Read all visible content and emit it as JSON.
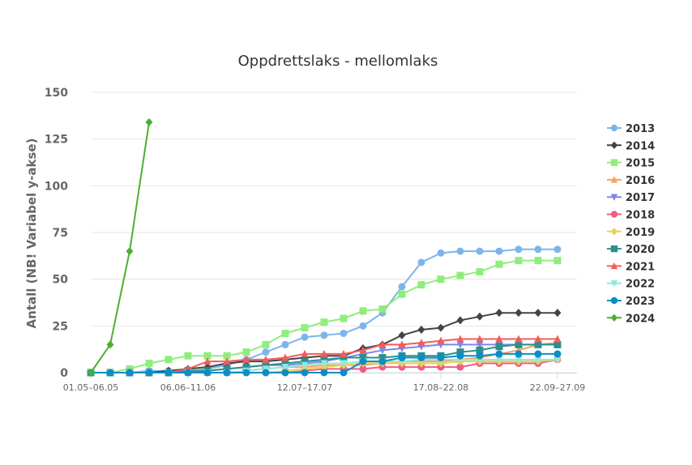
{
  "chart_data": {
    "type": "line",
    "title": "Oppdrettslaks - mellomlaks",
    "ylabel": "Antall (NB! Variabel y-akse)",
    "xlabel": "",
    "ylim": [
      0,
      150
    ],
    "yticks": [
      0,
      25,
      50,
      75,
      100,
      125,
      150
    ],
    "grid": true,
    "legend_position": "right",
    "x_count": 26,
    "x_tick_labels": [
      {
        "index": 0,
        "label": "01.05–06.05"
      },
      {
        "index": 5,
        "label": "06.06–11.06"
      },
      {
        "index": 11,
        "label": "12.07–17.07"
      },
      {
        "index": 18,
        "label": "17.08–22.08"
      },
      {
        "index": 24,
        "label": "22.09–27.09"
      }
    ],
    "series": [
      {
        "name": "2013",
        "color": "#7cb5ec",
        "marker": "circle",
        "values": [
          0,
          0,
          0,
          1,
          1,
          1,
          2,
          4,
          7,
          11,
          15,
          19,
          20,
          21,
          25,
          32,
          46,
          59,
          64,
          65,
          65,
          65,
          66,
          66,
          66
        ]
      },
      {
        "name": "2014",
        "color": "#434348",
        "marker": "diamond",
        "values": [
          0,
          0,
          0,
          0,
          1,
          2,
          3,
          5,
          6,
          6,
          7,
          8,
          9,
          9,
          13,
          15,
          20,
          23,
          24,
          28,
          30,
          32,
          32,
          32,
          32
        ]
      },
      {
        "name": "2015",
        "color": "#90ed7d",
        "marker": "square",
        "values": [
          0,
          0,
          2,
          5,
          7,
          9,
          9,
          9,
          11,
          15,
          21,
          24,
          27,
          29,
          33,
          34,
          42,
          47,
          50,
          52,
          54,
          58,
          60,
          60,
          60
        ]
      },
      {
        "name": "2016",
        "color": "#f7a35c",
        "marker": "triangle",
        "values": [
          0,
          0,
          0,
          0,
          0,
          0,
          0,
          0,
          1,
          2,
          3,
          3,
          4,
          4,
          4,
          5,
          6,
          6,
          6,
          7,
          8,
          10,
          12,
          15,
          16
        ]
      },
      {
        "name": "2017",
        "color": "#8085e9",
        "marker": "triangle-down",
        "values": [
          0,
          0,
          0,
          0,
          0,
          0,
          1,
          2,
          3,
          4,
          4,
          5,
          6,
          8,
          10,
          12,
          13,
          14,
          15,
          15,
          15,
          15,
          15,
          15,
          15
        ]
      },
      {
        "name": "2018",
        "color": "#f15c80",
        "marker": "circle",
        "values": [
          0,
          0,
          0,
          0,
          0,
          0,
          0,
          0,
          0,
          0,
          0,
          1,
          2,
          2,
          2,
          3,
          3,
          3,
          3,
          3,
          5,
          5,
          5,
          5,
          7
        ]
      },
      {
        "name": "2019",
        "color": "#e4d354",
        "marker": "diamond",
        "values": [
          0,
          0,
          0,
          0,
          0,
          0,
          0,
          0,
          0,
          0,
          1,
          2,
          3,
          4,
          5,
          5,
          5,
          5,
          5,
          6,
          6,
          6,
          6,
          6,
          7
        ]
      },
      {
        "name": "2020",
        "color": "#2b908f",
        "marker": "square",
        "values": [
          0,
          0,
          0,
          0,
          0,
          1,
          1,
          2,
          3,
          4,
          5,
          6,
          7,
          8,
          8,
          8,
          9,
          9,
          9,
          11,
          12,
          14,
          15,
          15,
          15
        ]
      },
      {
        "name": "2021",
        "color": "#f45b5b",
        "marker": "triangle",
        "values": [
          0,
          0,
          0,
          0,
          0,
          2,
          6,
          6,
          7,
          7,
          8,
          10,
          10,
          10,
          12,
          15,
          15,
          16,
          17,
          18,
          18,
          18,
          18,
          18,
          18
        ]
      },
      {
        "name": "2022",
        "color": "#91e8e1",
        "marker": "triangle-down",
        "values": [
          0,
          0,
          0,
          0,
          0,
          0,
          0,
          0,
          1,
          2,
          3,
          4,
          5,
          5,
          6,
          6,
          6,
          7,
          7,
          7,
          7,
          7,
          7,
          7,
          7
        ]
      },
      {
        "name": "2023",
        "color": "#0e8cc4",
        "marker": "circle",
        "values": [
          0,
          0,
          0,
          0,
          0,
          0,
          0,
          0,
          0,
          0,
          0,
          0,
          0,
          0,
          6,
          6,
          8,
          8,
          8,
          9,
          9,
          10,
          10,
          10,
          10
        ]
      },
      {
        "name": "2024",
        "color": "#4caf30",
        "marker": "diamond",
        "values": [
          0,
          15,
          65,
          134
        ]
      }
    ]
  }
}
